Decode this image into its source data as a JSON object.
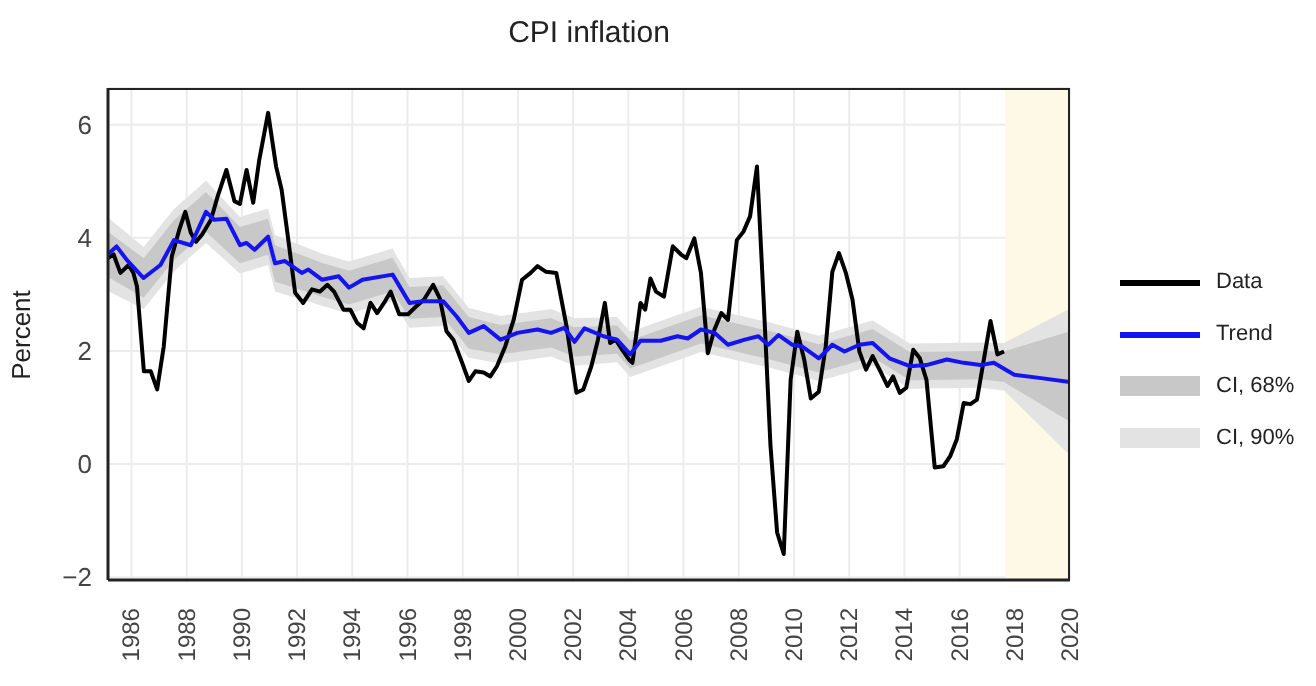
{
  "chart_data": {
    "type": "line",
    "title": "CPI inflation",
    "ylabel": "Percent",
    "xlim": [
      1985.15,
      2020
    ],
    "xticks": [
      1986,
      1988,
      1990,
      1992,
      1994,
      1996,
      1998,
      2000,
      2002,
      2004,
      2006,
      2008,
      2010,
      2012,
      2014,
      2016,
      2018,
      2020
    ],
    "ylim": [
      -2.05,
      6.65
    ],
    "yticks": [
      -2,
      0,
      2,
      4,
      6
    ],
    "grid": true,
    "legend": "right",
    "marker": "none",
    "line_style": "solid",
    "bands": [
      {
        "axis": "x",
        "from": 2017.65,
        "to": 2020,
        "color": "#fdf9e6"
      }
    ],
    "series": [
      {
        "name": "Data",
        "type": "line",
        "color": "#000000",
        "x": [
          1985.15,
          1985.35,
          1985.6,
          1985.9,
          1986.07,
          1986.2,
          1986.45,
          1986.7,
          1986.93,
          1987.17,
          1987.46,
          1987.73,
          1987.95,
          1988.15,
          1988.34,
          1988.56,
          1988.88,
          1989.12,
          1989.44,
          1989.73,
          1989.93,
          1990.17,
          1990.41,
          1990.63,
          1990.95,
          1991.24,
          1991.44,
          1991.68,
          1991.93,
          1992.22,
          1992.54,
          1992.83,
          1993.1,
          1993.34,
          1993.68,
          1993.93,
          1994.17,
          1994.41,
          1994.66,
          1994.9,
          1995.15,
          1995.39,
          1995.7,
          1996.02,
          1996.32,
          1996.6,
          1996.93,
          1997.17,
          1997.41,
          1997.66,
          1997.98,
          1998.22,
          1998.46,
          1998.76,
          1999.0,
          1999.24,
          1999.54,
          1999.85,
          2000.15,
          2000.46,
          2000.71,
          2001.02,
          2001.39,
          2001.76,
          2002.12,
          2002.37,
          2002.66,
          2002.9,
          2003.15,
          2003.34,
          2003.54,
          2003.78,
          2004.02,
          2004.15,
          2004.44,
          2004.61,
          2004.8,
          2005.0,
          2005.29,
          2005.61,
          2005.9,
          2006.1,
          2006.39,
          2006.63,
          2006.88,
          2007.12,
          2007.37,
          2007.61,
          2007.93,
          2008.17,
          2008.41,
          2008.66,
          2008.9,
          2009.15,
          2009.39,
          2009.63,
          2009.88,
          2010.12,
          2010.37,
          2010.61,
          2010.9,
          2011.15,
          2011.39,
          2011.63,
          2011.88,
          2012.12,
          2012.37,
          2012.61,
          2012.85,
          2013.1,
          2013.39,
          2013.59,
          2013.83,
          2014.07,
          2014.32,
          2014.56,
          2014.8,
          2015.1,
          2015.41,
          2015.66,
          2015.9,
          2016.15,
          2016.39,
          2016.63,
          2016.88,
          2017.12,
          2017.37,
          2017.61
        ],
        "values": [
          3.64,
          3.71,
          3.38,
          3.52,
          3.38,
          3.14,
          1.64,
          1.64,
          1.32,
          2.08,
          3.67,
          4.14,
          4.46,
          4.09,
          3.93,
          4.06,
          4.32,
          4.73,
          5.2,
          4.65,
          4.6,
          5.2,
          4.62,
          5.38,
          6.21,
          5.26,
          4.85,
          3.97,
          3.03,
          2.85,
          3.09,
          3.05,
          3.17,
          3.05,
          2.73,
          2.73,
          2.5,
          2.4,
          2.85,
          2.67,
          2.85,
          3.05,
          2.65,
          2.65,
          2.79,
          2.91,
          3.17,
          2.93,
          2.35,
          2.2,
          1.79,
          1.47,
          1.64,
          1.62,
          1.55,
          1.73,
          2.08,
          2.56,
          3.26,
          3.38,
          3.5,
          3.4,
          3.38,
          2.44,
          1.26,
          1.32,
          1.73,
          2.2,
          2.85,
          2.14,
          2.2,
          2.02,
          1.85,
          1.79,
          2.85,
          2.73,
          3.28,
          3.05,
          2.96,
          3.85,
          3.71,
          3.64,
          3.99,
          3.38,
          1.96,
          2.38,
          2.67,
          2.55,
          3.96,
          4.11,
          4.38,
          5.26,
          2.91,
          0.32,
          -1.21,
          -1.59,
          1.49,
          2.34,
          1.85,
          1.16,
          1.28,
          2.08,
          3.4,
          3.73,
          3.38,
          2.91,
          1.99,
          1.67,
          1.91,
          1.67,
          1.38,
          1.55,
          1.26,
          1.35,
          2.02,
          1.87,
          1.49,
          -0.06,
          -0.04,
          0.14,
          0.44,
          1.08,
          1.06,
          1.14,
          1.85,
          2.53,
          1.94,
          1.99
        ]
      },
      {
        "name": "Trend",
        "type": "line",
        "color": "#1414f0",
        "x": [
          1985.15,
          1985.46,
          1985.83,
          1986.44,
          1987.05,
          1987.54,
          1988.15,
          1988.7,
          1989.0,
          1989.44,
          1989.93,
          1990.17,
          1990.46,
          1990.95,
          1991.2,
          1991.56,
          1992.17,
          1992.41,
          1992.9,
          1993.51,
          1993.88,
          1994.37,
          1995.46,
          1996.07,
          1996.56,
          1997.29,
          1997.78,
          1998.22,
          1998.76,
          1999.37,
          1999.98,
          2000.71,
          2001.2,
          2001.68,
          2002.05,
          2002.41,
          2003.1,
          2003.59,
          2004.07,
          2004.44,
          2005.17,
          2005.78,
          2006.15,
          2006.63,
          2007.12,
          2007.61,
          2008.22,
          2008.71,
          2009.07,
          2009.44,
          2009.93,
          2010.29,
          2010.9,
          2011.39,
          2011.83,
          2012.37,
          2012.85,
          2013.46,
          2014.2,
          2014.8,
          2015.54,
          2016.15,
          2016.76,
          2017.24,
          2017.98,
          2018.95,
          2020
        ],
        "values": [
          3.71,
          3.85,
          3.61,
          3.29,
          3.52,
          3.96,
          3.87,
          4.46,
          4.32,
          4.34,
          3.87,
          3.91,
          3.79,
          4.02,
          3.55,
          3.59,
          3.38,
          3.44,
          3.26,
          3.32,
          3.12,
          3.26,
          3.35,
          2.85,
          2.88,
          2.88,
          2.61,
          2.32,
          2.44,
          2.2,
          2.32,
          2.38,
          2.32,
          2.41,
          2.16,
          2.4,
          2.26,
          2.2,
          1.94,
          2.18,
          2.18,
          2.26,
          2.22,
          2.38,
          2.32,
          2.11,
          2.2,
          2.26,
          2.11,
          2.28,
          2.11,
          2.08,
          1.87,
          2.11,
          1.99,
          2.11,
          2.14,
          1.87,
          1.73,
          1.75,
          1.85,
          1.79,
          1.75,
          1.79,
          1.58,
          1.52,
          1.45
        ]
      },
      {
        "name": "CI, 90%",
        "type": "area",
        "color": "#e3e3e3",
        "x": [
          1985.15,
          1986.44,
          1987.54,
          1988.7,
          1989.93,
          1990.95,
          1991.2,
          1992.9,
          1993.88,
          1995.46,
          1996.07,
          1997.29,
          1998.22,
          1999.37,
          2001.2,
          2002.05,
          2003.59,
          2004.07,
          2006.63,
          2009.07,
          2010.9,
          2012.85,
          2014.2,
          2016.76,
          2017.61,
          2020
        ],
        "values": [
          null,
          null,
          null,
          null,
          null,
          null,
          null,
          null,
          null,
          null,
          null,
          null,
          null,
          null,
          null,
          null,
          null,
          null,
          null,
          null,
          null,
          null,
          null,
          null,
          null,
          null
        ],
        "lower": [
          3.06,
          2.74,
          3.41,
          3.91,
          3.37,
          3.52,
          3.05,
          2.8,
          2.66,
          2.89,
          2.41,
          2.44,
          1.88,
          1.78,
          1.9,
          1.74,
          1.8,
          1.54,
          1.98,
          1.71,
          1.47,
          1.74,
          1.33,
          1.35,
          1.3,
          0.15
        ],
        "upper": [
          4.36,
          3.84,
          4.51,
          5.01,
          4.37,
          4.52,
          4.05,
          3.72,
          3.58,
          3.81,
          3.29,
          3.32,
          2.76,
          2.62,
          2.74,
          2.58,
          2.6,
          2.34,
          2.78,
          2.51,
          2.27,
          2.54,
          2.13,
          2.15,
          2.14,
          2.75
        ]
      },
      {
        "name": "CI, 68%",
        "type": "area",
        "color": "#c8c8c8",
        "x": [
          1985.15,
          1986.44,
          1987.54,
          1988.7,
          1989.93,
          1990.95,
          1991.2,
          1992.9,
          1993.88,
          1995.46,
          1996.07,
          1997.29,
          1998.22,
          1999.37,
          2001.2,
          2002.05,
          2003.59,
          2004.07,
          2006.63,
          2009.07,
          2010.9,
          2012.85,
          2014.2,
          2016.76,
          2017.61,
          2020
        ],
        "values": [
          null,
          null,
          null,
          null,
          null,
          null,
          null,
          null,
          null,
          null,
          null,
          null,
          null,
          null,
          null,
          null,
          null,
          null,
          null,
          null,
          null,
          null,
          null,
          null,
          null,
          null
        ],
        "lower": [
          3.31,
          2.94,
          3.61,
          4.11,
          3.55,
          3.7,
          3.23,
          2.96,
          2.82,
          3.05,
          2.57,
          2.6,
          2.04,
          1.94,
          2.06,
          1.9,
          1.95,
          1.69,
          2.13,
          1.86,
          1.62,
          1.89,
          1.48,
          1.5,
          1.45,
          0.75
        ],
        "upper": [
          4.11,
          3.64,
          4.31,
          4.81,
          4.19,
          4.34,
          3.87,
          3.56,
          3.42,
          3.65,
          3.13,
          3.16,
          2.6,
          2.46,
          2.58,
          2.42,
          2.45,
          2.19,
          2.63,
          2.36,
          2.12,
          2.39,
          1.98,
          2.0,
          1.99,
          2.35
        ]
      }
    ]
  }
}
